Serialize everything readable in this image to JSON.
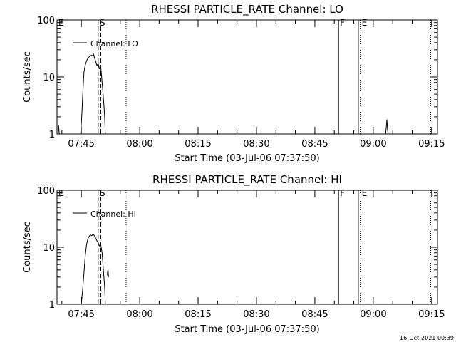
{
  "chart_data": [
    {
      "type": "line",
      "title": "RHESSI PARTICLE_RATE Channel: LO",
      "xlabel": "Start Time (03-Jul-06 07:37:50)",
      "ylabel": "Counts/sec",
      "y_scale": "log",
      "ylim": [
        1,
        100
      ],
      "xlim": [
        "07:38:45",
        "09:16:30"
      ],
      "y_ticks": [
        "1",
        "10",
        "100"
      ],
      "x_ticks": [
        "07:45",
        "08:00",
        "08:15",
        "08:30",
        "08:45",
        "09:00",
        "09:15"
      ],
      "legend": {
        "position": "top-left",
        "entries": [
          "Channel: LO"
        ]
      },
      "series": [
        {
          "name": "Channel: LO",
          "segments": [
            [
              [
                "07:39:00",
                1.0
              ],
              [
                "07:39:10",
                1.4
              ],
              [
                "07:39:20",
                1.0
              ]
            ],
            [
              [
                "07:44:50",
                1.0
              ],
              [
                "07:45:00",
                1.5
              ],
              [
                "07:45:10",
                2.5
              ],
              [
                "07:45:20",
                4.5
              ],
              [
                "07:45:30",
                7.5
              ],
              [
                "07:45:40",
                12
              ],
              [
                "07:46:00",
                16
              ],
              [
                "07:46:20",
                19
              ],
              [
                "07:46:40",
                21
              ],
              [
                "07:47:00",
                22.5
              ],
              [
                "07:47:20",
                23.5
              ],
              [
                "07:47:40",
                24
              ],
              [
                "07:48:00",
                23.5
              ],
              [
                "07:48:10",
                25
              ],
              [
                "07:48:20",
                22
              ],
              [
                "07:48:40",
                19
              ],
              [
                "07:49:00",
                16
              ],
              [
                "07:49:20",
                17
              ],
              [
                "07:49:40",
                14
              ],
              [
                "07:50:00",
                14.5
              ],
              [
                "07:50:10",
                11
              ],
              [
                "07:50:30",
                6
              ],
              [
                "07:50:50",
                3
              ],
              [
                "07:51:00",
                2
              ],
              [
                "07:51:10",
                1.0
              ]
            ],
            [
              [
                "09:03:10",
                1.0
              ],
              [
                "09:03:20",
                1.3
              ],
              [
                "09:03:30",
                1.8
              ],
              [
                "09:03:40",
                1.2
              ],
              [
                "09:03:50",
                1.0
              ]
            ]
          ]
        }
      ],
      "markers": [
        {
          "label": "E",
          "time": "07:38:45",
          "style": "solid"
        },
        {
          "label": "S",
          "time": "07:49:20",
          "style": "dashed"
        },
        {
          "label": "",
          "time": "07:50:00",
          "style": "dashed"
        },
        {
          "label": "",
          "time": "07:56:30",
          "style": "dotted"
        },
        {
          "label": "F",
          "time": "08:51:05",
          "style": "solid"
        },
        {
          "label": "",
          "time": "08:56:10",
          "style": "solid"
        },
        {
          "label": "E",
          "time": "08:56:40",
          "style": "dotted"
        },
        {
          "label": "",
          "time": "09:14:45",
          "style": "dotted"
        }
      ]
    },
    {
      "type": "line",
      "title": "RHESSI PARTICLE_RATE Channel: HI",
      "xlabel": "Start Time (03-Jul-06 07:37:50)",
      "ylabel": "Counts/sec",
      "y_scale": "log",
      "ylim": [
        1,
        100
      ],
      "xlim": [
        "07:38:45",
        "09:16:30"
      ],
      "y_ticks": [
        "1",
        "10",
        "100"
      ],
      "x_ticks": [
        "07:45",
        "08:00",
        "08:15",
        "08:30",
        "08:45",
        "09:00",
        "09:15"
      ],
      "legend": {
        "position": "top-left",
        "entries": [
          "Channel: HI"
        ]
      },
      "series": [
        {
          "name": "Channel: HI",
          "segments": [
            [
              [
                "07:45:00",
                1.0
              ],
              [
                "07:45:20",
                1.8
              ],
              [
                "07:45:40",
                3.5
              ],
              [
                "07:46:00",
                7
              ],
              [
                "07:46:20",
                11
              ],
              [
                "07:46:40",
                14
              ],
              [
                "07:47:00",
                15.5
              ],
              [
                "07:47:20",
                16.5
              ],
              [
                "07:47:40",
                16
              ],
              [
                "07:48:00",
                17
              ],
              [
                "07:48:20",
                16
              ],
              [
                "07:48:40",
                14.5
              ],
              [
                "07:49:00",
                13
              ],
              [
                "07:49:20",
                12
              ],
              [
                "07:49:40",
                10.5
              ],
              [
                "07:50:00",
                11
              ],
              [
                "07:50:20",
                8
              ],
              [
                "07:50:40",
                4
              ],
              [
                "07:51:00",
                2
              ],
              [
                "07:51:10",
                1.0
              ]
            ],
            [
              [
                "07:51:40",
                3.2
              ],
              [
                "07:51:50",
                4.2
              ],
              [
                "07:52:00",
                3.0
              ]
            ]
          ]
        }
      ],
      "markers": [
        {
          "label": "E",
          "time": "07:38:45",
          "style": "solid"
        },
        {
          "label": "S",
          "time": "07:49:20",
          "style": "dashed"
        },
        {
          "label": "",
          "time": "07:50:00",
          "style": "dashed"
        },
        {
          "label": "",
          "time": "07:56:30",
          "style": "dotted"
        },
        {
          "label": "F",
          "time": "08:51:05",
          "style": "solid"
        },
        {
          "label": "",
          "time": "08:56:10",
          "style": "solid"
        },
        {
          "label": "E",
          "time": "08:56:40",
          "style": "dotted"
        },
        {
          "label": "",
          "time": "09:14:45",
          "style": "dotted"
        }
      ]
    }
  ],
  "footer": {
    "timestamp": "16-Oct-2021 00:39"
  },
  "colors": {
    "background": "#ffffff",
    "foreground": "#000000"
  }
}
